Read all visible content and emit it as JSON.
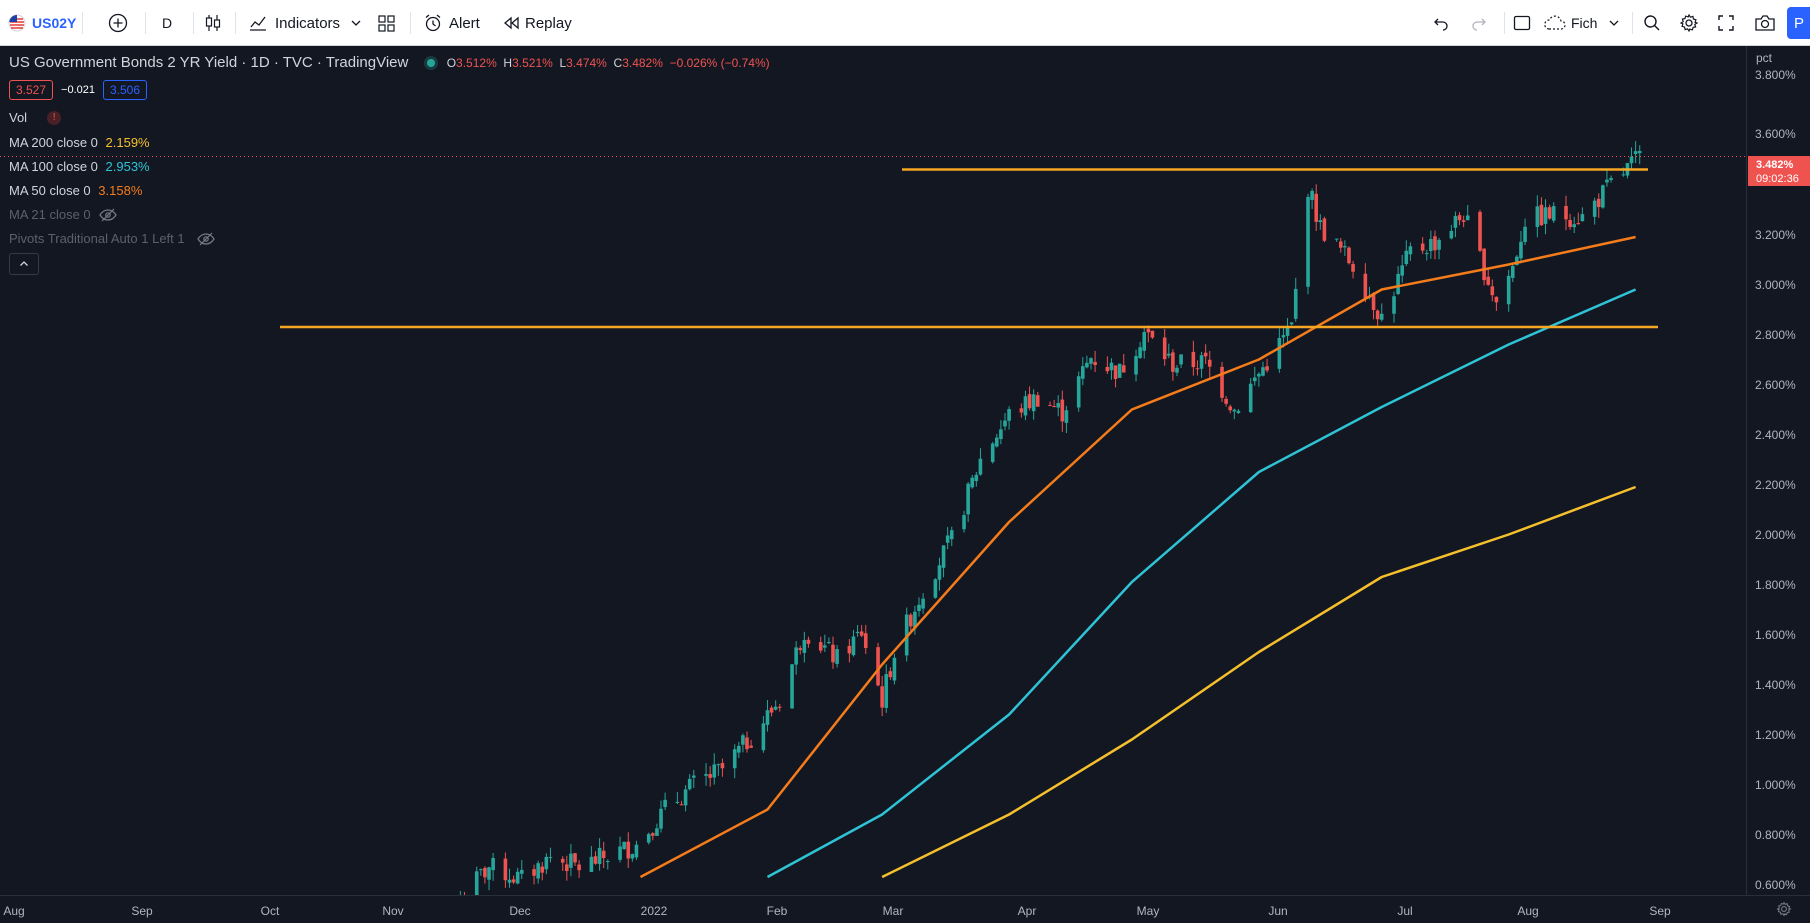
{
  "toolbar": {
    "symbol": "US02Y",
    "interval": "D",
    "indicators_label": "Indicators",
    "alert_label": "Alert",
    "replay_label": "Replay",
    "layout_label": "Fich",
    "publish_label": "P"
  },
  "legend": {
    "title": "US Government Bonds 2 YR Yield · 1D · TVC · TradingView",
    "ohlc": {
      "o_label": "O",
      "o": "3.512%",
      "h_label": "H",
      "h": "3.521%",
      "l_label": "L",
      "l": "3.474%",
      "c_label": "C",
      "c": "3.482%",
      "change": "−0.026% (−0.74%)"
    },
    "bid": "3.527",
    "spread": "−0.021",
    "ask": "3.506",
    "vol_label": "Vol",
    "indicators": [
      {
        "label": "MA 200 close 0",
        "value": "2.159%",
        "color": "#f5c02c"
      },
      {
        "label": "MA 100 close 0",
        "value": "2.953%",
        "color": "#2ec4d6"
      },
      {
        "label": "MA 50 close 0",
        "value": "3.158%",
        "color": "#f57c1a"
      },
      {
        "label": "MA 21 close 0",
        "value": "",
        "color": "#787b86"
      },
      {
        "label": "Pivots Traditional Auto 1 Left 1",
        "value": "",
        "color": "#787b86"
      }
    ]
  },
  "price_axis": {
    "unit": "pct",
    "ticks": [
      "3.800%",
      "3.600%",
      "3.400%",
      "3.200%",
      "3.000%",
      "2.800%",
      "2.600%",
      "2.400%",
      "2.200%",
      "2.000%",
      "1.800%",
      "1.600%",
      "1.400%",
      "1.200%",
      "1.000%",
      "0.800%",
      "0.600%"
    ],
    "last_price": "3.482%",
    "countdown": "09:02:36"
  },
  "time_axis": {
    "ticks": [
      "Aug",
      "Sep",
      "Oct",
      "Nov",
      "Dec",
      "2022",
      "Feb",
      "Mar",
      "Apr",
      "May",
      "Jun",
      "Jul",
      "Aug",
      "Sep"
    ]
  },
  "colors": {
    "background": "#131722",
    "candle_up": "#26a69a",
    "candle_down": "#ef5350",
    "ma200": "#f5c02c",
    "ma100": "#2ec4d6",
    "ma50": "#f57c1a",
    "hline": "#f5a623",
    "accent": "#2962ff"
  },
  "chart_data": {
    "type": "candlestick",
    "symbol": "US02Y",
    "interval": "1D",
    "y_unit": "pct",
    "ylim": [
      0.55,
      3.9
    ],
    "x_range": [
      "2021-08",
      "2022-09"
    ],
    "horizontal_lines": [
      3.43,
      2.8
    ],
    "ma_series": [
      {
        "name": "MA 200 close 0",
        "points": [
          [
            "2022-03-01",
            0.6
          ],
          [
            "2022-04-01",
            0.85
          ],
          [
            "2022-05-01",
            1.15
          ],
          [
            "2022-06-01",
            1.5
          ],
          [
            "2022-07-01",
            1.8
          ],
          [
            "2022-08-01",
            1.97
          ],
          [
            "2022-09-01",
            2.16
          ]
        ]
      },
      {
        "name": "MA 100 close 0",
        "points": [
          [
            "2022-02-01",
            0.6
          ],
          [
            "2022-03-01",
            0.85
          ],
          [
            "2022-04-01",
            1.25
          ],
          [
            "2022-05-01",
            1.78
          ],
          [
            "2022-06-01",
            2.22
          ],
          [
            "2022-07-01",
            2.48
          ],
          [
            "2022-08-01",
            2.73
          ],
          [
            "2022-09-01",
            2.95
          ]
        ]
      },
      {
        "name": "MA 50 close 0",
        "points": [
          [
            "2022-01-01",
            0.6
          ],
          [
            "2022-02-01",
            0.87
          ],
          [
            "2022-03-01",
            1.45
          ],
          [
            "2022-04-01",
            2.02
          ],
          [
            "2022-05-01",
            2.47
          ],
          [
            "2022-06-01",
            2.67
          ],
          [
            "2022-07-01",
            2.95
          ],
          [
            "2022-08-01",
            3.05
          ],
          [
            "2022-09-01",
            3.16
          ]
        ]
      }
    ],
    "close_path": [
      [
        "2021-11-18",
        0.52
      ],
      [
        "2021-11-25",
        0.64
      ],
      [
        "2021-12-03",
        0.59
      ],
      [
        "2021-12-10",
        0.68
      ],
      [
        "2021-12-17",
        0.64
      ],
      [
        "2021-12-31",
        0.73
      ],
      [
        "2022-01-07",
        0.87
      ],
      [
        "2022-01-14",
        0.97
      ],
      [
        "2022-01-21",
        1.03
      ],
      [
        "2022-01-28",
        1.16
      ],
      [
        "2022-02-04",
        1.31
      ],
      [
        "2022-02-10",
        1.59
      ],
      [
        "2022-02-18",
        1.47
      ],
      [
        "2022-02-24",
        1.58
      ],
      [
        "2022-03-01",
        1.31
      ],
      [
        "2022-03-04",
        1.5
      ],
      [
        "2022-03-11",
        1.75
      ],
      [
        "2022-03-18",
        1.95
      ],
      [
        "2022-03-25",
        2.27
      ],
      [
        "2022-04-01",
        2.45
      ],
      [
        "2022-04-08",
        2.52
      ],
      [
        "2022-04-14",
        2.46
      ],
      [
        "2022-04-21",
        2.68
      ],
      [
        "2022-04-28",
        2.62
      ],
      [
        "2022-05-04",
        2.78
      ],
      [
        "2022-05-11",
        2.65
      ],
      [
        "2022-05-19",
        2.66
      ],
      [
        "2022-05-26",
        2.47
      ],
      [
        "2022-06-03",
        2.66
      ],
      [
        "2022-06-09",
        2.8
      ],
      [
        "2022-06-13",
        3.36
      ],
      [
        "2022-06-16",
        3.2
      ],
      [
        "2022-06-24",
        3.05
      ],
      [
        "2022-07-01",
        2.84
      ],
      [
        "2022-07-08",
        3.1
      ],
      [
        "2022-07-14",
        3.14
      ],
      [
        "2022-07-21",
        3.25
      ],
      [
        "2022-07-29",
        2.9
      ],
      [
        "2022-08-02",
        3.04
      ],
      [
        "2022-08-05",
        3.23
      ],
      [
        "2022-08-12",
        3.25
      ],
      [
        "2022-08-19",
        3.24
      ],
      [
        "2022-08-26",
        3.37
      ],
      [
        "2022-09-02",
        3.48
      ]
    ]
  }
}
